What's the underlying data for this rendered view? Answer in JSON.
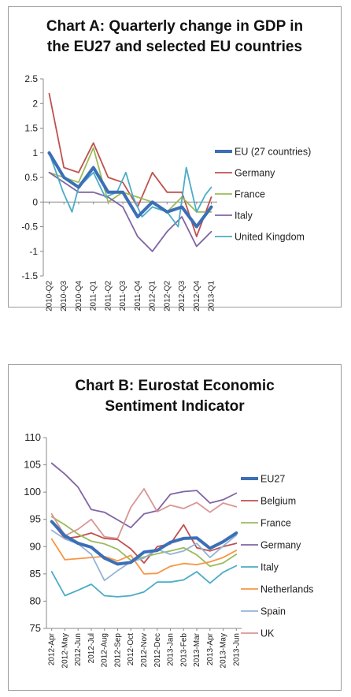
{
  "chart_data": [
    {
      "type": "line",
      "title": "Chart A: Quarterly change in GDP in the EU27 and selected EU countries",
      "title_lines": [
        "Chart A: Quarterly change in GDP in",
        "the EU27 and selected EU countries"
      ],
      "xlabel": "",
      "ylabel": "",
      "ylim": [
        -1.5,
        2.5
      ],
      "yticks": [
        "2.5",
        "2",
        "1.5",
        "1",
        "0.5",
        "0",
        "-0.5",
        "-1",
        "-1.5"
      ],
      "categories": [
        "2010-Q2",
        "2010-Q3",
        "2010-Q4",
        "2011-Q1",
        "2011-Q2",
        "2011-Q3",
        "2011-Q4",
        "2012-Q1",
        "2012-Q2",
        "2012-Q3",
        "2012-Q4",
        "2013-Q1"
      ],
      "x_positions": [
        0,
        1,
        2,
        3,
        4,
        5,
        6,
        7,
        8,
        9,
        10,
        11
      ],
      "x_range": [
        -0.4,
        11.4
      ],
      "grid": false,
      "legend_position": "right",
      "series": [
        {
          "name": "EU (27 countries)",
          "color": "#3b6fb6",
          "bold": true,
          "x": [
            0,
            1,
            2,
            3,
            4,
            5,
            6,
            7,
            8,
            9,
            10,
            11
          ],
          "values": [
            1.0,
            0.5,
            0.3,
            0.7,
            0.2,
            0.2,
            -0.3,
            0.0,
            -0.2,
            -0.1,
            -0.5,
            -0.1
          ]
        },
        {
          "name": "Germany",
          "color": "#c0504d",
          "bold": false,
          "x": [
            0,
            1,
            2,
            3,
            4,
            5,
            6,
            7,
            8,
            9,
            10,
            11
          ],
          "values": [
            2.2,
            0.7,
            0.6,
            1.2,
            0.5,
            0.4,
            -0.1,
            0.6,
            0.2,
            0.2,
            -0.7,
            0.1
          ]
        },
        {
          "name": "France",
          "color": "#9bbb59",
          "bold": false,
          "x": [
            0,
            1,
            2,
            3,
            4,
            5,
            6,
            7,
            8,
            9,
            10,
            11
          ],
          "values": [
            0.6,
            0.5,
            0.4,
            1.1,
            0.0,
            0.2,
            0.1,
            0.0,
            -0.2,
            0.1,
            -0.2,
            -0.2
          ]
        },
        {
          "name": "Italy",
          "color": "#8064a2",
          "bold": false,
          "x": [
            0,
            1,
            2,
            3,
            4,
            5,
            6,
            7,
            8,
            9,
            10,
            11
          ],
          "values": [
            0.6,
            0.4,
            0.2,
            0.2,
            0.1,
            -0.1,
            -0.7,
            -1.0,
            -0.6,
            -0.3,
            -0.9,
            -0.6
          ]
        },
        {
          "name": "United Kingdom",
          "color": "#4bacc6",
          "bold": false,
          "x": [
            0,
            0.95,
            1.55,
            2,
            3,
            3.8,
            4.6,
            5.2,
            5.7,
            6.3,
            7,
            8,
            8.75,
            9.3,
            10,
            10.6,
            11
          ],
          "values": [
            1.0,
            0.2,
            -0.2,
            0.3,
            0.6,
            0.1,
            0.2,
            0.6,
            0.1,
            -0.3,
            -0.1,
            -0.2,
            -0.5,
            0.7,
            -0.2,
            0.15,
            0.3
          ]
        }
      ]
    },
    {
      "type": "line",
      "title": "Chart B: Eurostat Economic Sentiment Indicator",
      "title_lines": [
        "Chart B: Eurostat Economic",
        "Sentiment Indicator"
      ],
      "xlabel": "",
      "ylabel": "",
      "ylim": [
        75,
        110
      ],
      "yticks": [
        "110",
        "105",
        "100",
        "95",
        "90",
        "85",
        "80",
        "75"
      ],
      "categories": [
        "2012-Apr",
        "2012-May",
        "2012-Jun",
        "2012-Jul",
        "2012-Aug",
        "2012-Sep",
        "2012-Oct",
        "2012-Nov",
        "2012-Dec",
        "2013-Jan",
        "2013-Feb",
        "2013-Mar",
        "2013-Apr",
        "2013-May",
        "2013-Jun"
      ],
      "x_positions": [
        0,
        1,
        2,
        3,
        4,
        5,
        6,
        7,
        8,
        9,
        10,
        11,
        12,
        13,
        14
      ],
      "x_range": [
        -0.4,
        14.4
      ],
      "grid": false,
      "legend_position": "right",
      "series": [
        {
          "name": "EU27",
          "color": "#3b6fb6",
          "bold": true,
          "values": [
            94.6,
            92.0,
            90.6,
            89.9,
            87.9,
            86.8,
            87.1,
            89.0,
            89.3,
            90.8,
            91.5,
            91.6,
            89.7,
            90.9,
            92.5
          ]
        },
        {
          "name": "Belgium",
          "color": "#c0504d",
          "bold": false,
          "values": [
            94.5,
            91.5,
            91.8,
            92.5,
            91.5,
            91.3,
            89.6,
            87.0,
            90.0,
            90.5,
            94.0,
            89.8,
            89.2,
            90.0,
            90.6
          ]
        },
        {
          "name": "France",
          "color": "#9bbb59",
          "bold": false,
          "values": [
            95.5,
            94.0,
            92.3,
            91.0,
            90.5,
            89.5,
            87.5,
            88.1,
            88.7,
            89.2,
            89.8,
            88.5,
            86.4,
            87.0,
            88.6
          ]
        },
        {
          "name": "Germany",
          "color": "#8064a2",
          "bold": false,
          "values": [
            105.3,
            103.3,
            100.9,
            96.8,
            96.3,
            94.9,
            93.5,
            96.0,
            96.6,
            99.6,
            100.1,
            100.3,
            98.0,
            98.6,
            99.8
          ]
        },
        {
          "name": "Italy",
          "color": "#4bacc6",
          "bold": false,
          "values": [
            85.4,
            81.0,
            82.0,
            83.1,
            81.0,
            80.8,
            81.0,
            81.7,
            83.5,
            83.5,
            83.9,
            85.4,
            83.3,
            85.3,
            86.5
          ]
        },
        {
          "name": "Netherlands",
          "color": "#f79646",
          "bold": false,
          "values": [
            91.4,
            87.6,
            87.8,
            88.0,
            88.2,
            87.4,
            88.4,
            85.0,
            85.1,
            86.4,
            86.9,
            86.7,
            87.2,
            88.0,
            89.3
          ]
        },
        {
          "name": "Spain",
          "color": "#95b3d7",
          "bold": false,
          "values": [
            93.0,
            91.4,
            90.5,
            88.6,
            83.8,
            85.6,
            87.2,
            87.9,
            89.5,
            88.6,
            89.2,
            90.6,
            88.0,
            90.1,
            92.1
          ]
        },
        {
          "name": "UK",
          "color": "#d99694",
          "bold": false,
          "values": [
            96.0,
            92.0,
            93.2,
            95.0,
            91.8,
            91.5,
            97.2,
            100.6,
            96.4,
            97.6,
            97.0,
            98.1,
            96.3,
            98.0,
            97.3
          ]
        }
      ]
    }
  ]
}
